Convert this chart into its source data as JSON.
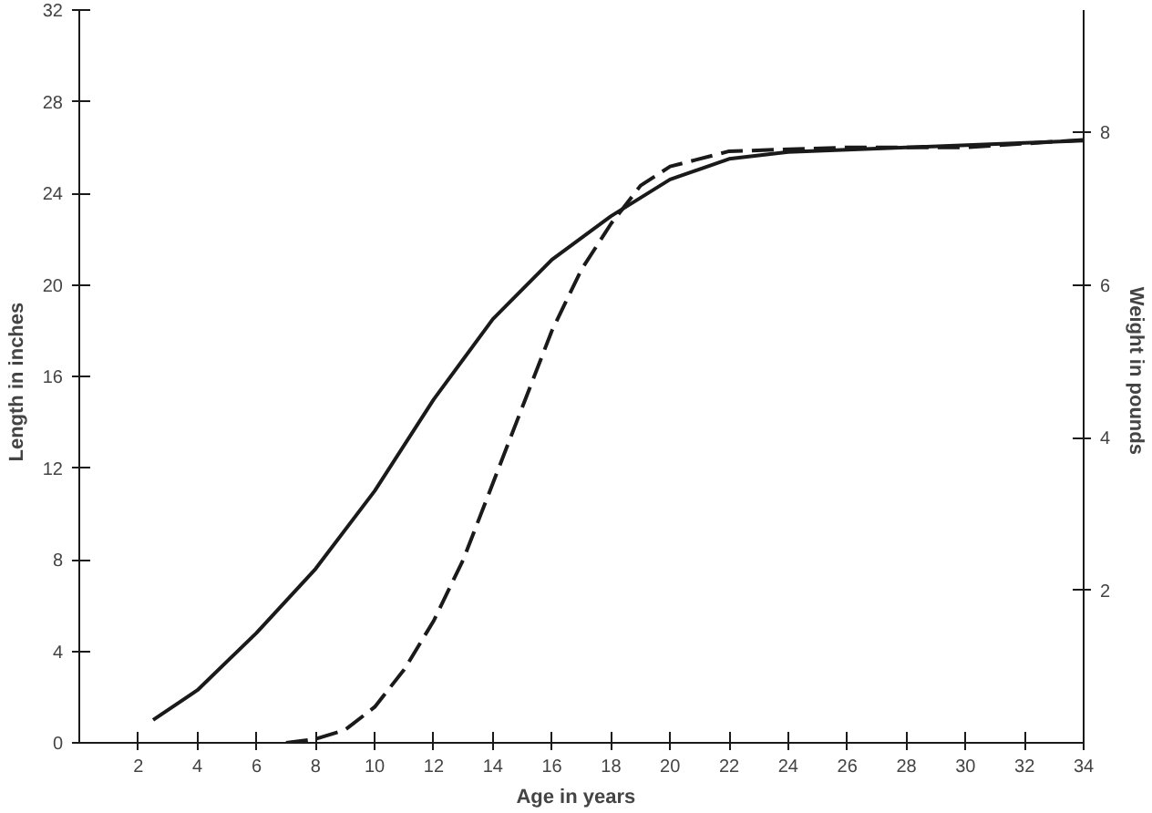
{
  "chart_data": {
    "type": "line",
    "xlabel": "Age  in  years",
    "ylabel": "Length  in  inches",
    "y2label": "Weight  in  pounds",
    "xlim": [
      0,
      34
    ],
    "xticks": [
      2,
      4,
      6,
      8,
      10,
      12,
      14,
      16,
      18,
      20,
      22,
      24,
      26,
      28,
      30,
      32,
      34
    ],
    "ylim": [
      0,
      32
    ],
    "yticks": [
      0,
      4,
      8,
      12,
      16,
      20,
      24,
      28,
      32
    ],
    "y2lim": [
      0,
      9.6
    ],
    "y2ticks": [
      2,
      4,
      6,
      8
    ],
    "grid": false,
    "series": [
      {
        "color": "#1a1a1a",
        "line_style": "solid",
        "x": [
          2.5,
          4,
          6,
          8,
          10,
          12,
          14,
          16,
          18,
          20,
          22,
          24,
          28,
          34
        ],
        "values": [
          1,
          2.3,
          4.8,
          7.6,
          11,
          15,
          18.5,
          21.1,
          23,
          24.6,
          25.5,
          25.8,
          26,
          26.3
        ]
      },
      {
        "color": "#1a1a1a",
        "line_style": "dashed",
        "axis": "y2",
        "x": [
          7,
          8,
          9,
          10,
          11,
          12,
          13,
          14,
          15,
          16,
          17,
          18,
          19,
          20,
          22,
          26,
          30,
          34
        ],
        "values": [
          0,
          0.05,
          0.17,
          0.47,
          0.96,
          1.6,
          2.4,
          3.4,
          4.4,
          5.4,
          6.2,
          6.8,
          7.3,
          7.55,
          7.75,
          7.8,
          7.8,
          7.9
        ]
      }
    ]
  }
}
